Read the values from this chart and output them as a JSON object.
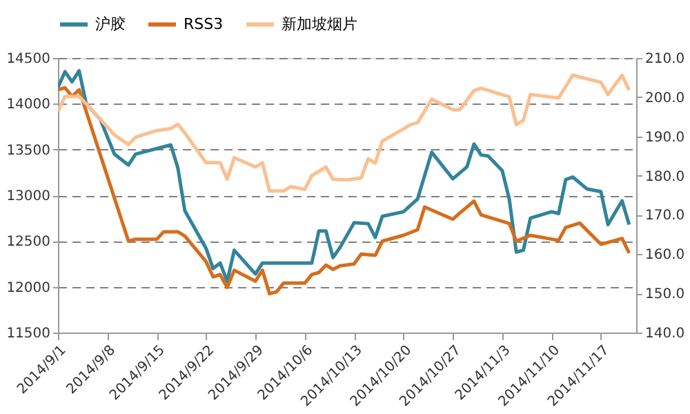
{
  "chart_data": {
    "type": "line",
    "xlim": [
      "2014-09-01",
      "2014-11-22"
    ],
    "xticks": [
      {
        "value": "2014-09-01",
        "label": "2014/9/1"
      },
      {
        "value": "2014-09-08",
        "label": "2014/9/8"
      },
      {
        "value": "2014-09-15",
        "label": "2014/9/15"
      },
      {
        "value": "2014-09-22",
        "label": "2014/9/22"
      },
      {
        "value": "2014-09-29",
        "label": "2014/9/29"
      },
      {
        "value": "2014-10-06",
        "label": "2014/10/6"
      },
      {
        "value": "2014-10-13",
        "label": "2014/10/13"
      },
      {
        "value": "2014-10-20",
        "label": "2014/10/20"
      },
      {
        "value": "2014-10-27",
        "label": "2014/10/27"
      },
      {
        "value": "2014-11-03",
        "label": "2014/11/3"
      },
      {
        "value": "2014-11-10",
        "label": "2014/11/10"
      },
      {
        "value": "2014-11-17",
        "label": "2014/11/17"
      }
    ],
    "ylim": [
      11500,
      14500
    ],
    "yticks": [
      11500,
      12000,
      12500,
      13000,
      13500,
      14000,
      14500
    ],
    "y2lim": [
      140,
      210
    ],
    "y2ticks": [
      {
        "value": 140,
        "label": "140.0"
      },
      {
        "value": 150,
        "label": "150.0"
      },
      {
        "value": 160,
        "label": "160.0"
      },
      {
        "value": 170,
        "label": "170.0"
      },
      {
        "value": 180,
        "label": "180.0"
      },
      {
        "value": 190,
        "label": "190.0"
      },
      {
        "value": 200,
        "label": "200.0"
      },
      {
        "value": 210,
        "label": "210.0"
      }
    ],
    "grid": "y",
    "legend": "top",
    "marker": "none",
    "line_style": "solid",
    "series": [
      {
        "name": "沪胶",
        "color": "#31849b",
        "x": [
          "2014-09-01",
          "2014-09-02",
          "2014-09-03",
          "2014-09-04",
          "2014-09-05",
          "2014-09-07",
          "2014-09-09",
          "2014-09-11",
          "2014-09-12",
          "2014-09-17",
          "2014-09-18",
          "2014-09-19",
          "2014-09-22",
          "2014-09-23",
          "2014-09-24",
          "2014-09-25",
          "2014-09-26",
          "2014-09-29",
          "2014-09-30",
          "2014-10-07",
          "2014-10-08",
          "2014-10-09",
          "2014-10-10",
          "2014-10-11",
          "2014-10-13",
          "2014-10-15",
          "2014-10-16",
          "2014-10-17",
          "2014-10-20",
          "2014-10-22",
          "2014-10-24",
          "2014-10-27",
          "2014-10-29",
          "2014-10-30",
          "2014-10-31",
          "2014-11-01",
          "2014-11-03",
          "2014-11-04",
          "2014-11-05",
          "2014-11-06",
          "2014-11-07",
          "2014-11-10",
          "2014-11-11",
          "2014-11-12",
          "2014-11-13",
          "2014-11-15",
          "2014-11-17",
          "2014-11-18",
          "2014-11-20",
          "2014-11-21"
        ],
        "values": [
          14180,
          14350,
          14240,
          14360,
          14000,
          13830,
          13450,
          13330,
          13450,
          13550,
          13300,
          12830,
          12420,
          12200,
          12260,
          12060,
          12400,
          12140,
          12260,
          12260,
          12610,
          12610,
          12320,
          12430,
          12700,
          12690,
          12540,
          12770,
          12820,
          12960,
          13470,
          13180,
          13310,
          13560,
          13440,
          13430,
          13270,
          12960,
          12380,
          12400,
          12750,
          12820,
          12800,
          13170,
          13200,
          13070,
          13040,
          12680,
          12940,
          12680
        ]
      },
      {
        "name": "RSS3",
        "color": "#d46e1e",
        "axis": "y2",
        "x": [
          "2014-09-01",
          "2014-09-02",
          "2014-09-03",
          "2014-09-04",
          "2014-09-11",
          "2014-09-12",
          "2014-09-15",
          "2014-09-16",
          "2014-09-18",
          "2014-09-19",
          "2014-09-22",
          "2014-09-23",
          "2014-09-24",
          "2014-09-25",
          "2014-09-26",
          "2014-09-29",
          "2014-09-30",
          "2014-10-01",
          "2014-10-02",
          "2014-10-03",
          "2014-10-06",
          "2014-10-07",
          "2014-10-08",
          "2014-10-09",
          "2014-10-10",
          "2014-10-11",
          "2014-10-13",
          "2014-10-14",
          "2014-10-16",
          "2014-10-17",
          "2014-10-20",
          "2014-10-22",
          "2014-10-23",
          "2014-10-27",
          "2014-10-28",
          "2014-10-30",
          "2014-10-31",
          "2014-11-04",
          "2014-11-05",
          "2014-11-07",
          "2014-11-11",
          "2014-11-12",
          "2014-11-14",
          "2014-11-17",
          "2014-11-20",
          "2014-11-21"
        ],
        "values": [
          201.9,
          202.4,
          200.2,
          201.9,
          163.3,
          163.8,
          163.8,
          165.7,
          165.7,
          164.6,
          158.1,
          154.2,
          154.8,
          151.5,
          155.9,
          153.1,
          155.9,
          149.9,
          150.4,
          152.6,
          152.6,
          154.8,
          155.3,
          157.2,
          156.1,
          157.0,
          157.5,
          160.0,
          159.7,
          163.3,
          164.8,
          166.2,
          172.0,
          168.9,
          170.5,
          173.5,
          170.0,
          167.8,
          163.3,
          164.8,
          163.5,
          166.8,
          167.9,
          162.5,
          164.0,
          160.3
        ]
      },
      {
        "name": "新加坡烟片",
        "color": "#fac090",
        "axis": "y2",
        "x": [
          "2014-09-01",
          "2014-09-02",
          "2014-09-04",
          "2014-09-06",
          "2014-09-09",
          "2014-09-11",
          "2014-09-12",
          "2014-09-15",
          "2014-09-17",
          "2014-09-18",
          "2014-09-19",
          "2014-09-22",
          "2014-09-24",
          "2014-09-25",
          "2014-09-26",
          "2014-09-29",
          "2014-09-30",
          "2014-10-01",
          "2014-10-03",
          "2014-10-04",
          "2014-10-06",
          "2014-10-07",
          "2014-10-09",
          "2014-10-10",
          "2014-10-12",
          "2014-10-14",
          "2014-10-15",
          "2014-10-16",
          "2014-10-17",
          "2014-10-20",
          "2014-10-21",
          "2014-10-22",
          "2014-10-24",
          "2014-10-27",
          "2014-10-28",
          "2014-10-30",
          "2014-10-31",
          "2014-11-04",
          "2014-11-05",
          "2014-11-06",
          "2014-11-07",
          "2014-11-11",
          "2014-11-13",
          "2014-11-17",
          "2014-11-18",
          "2014-11-20",
          "2014-11-21"
        ],
        "values": [
          196.4,
          200.2,
          200.2,
          196.4,
          190.4,
          187.9,
          189.8,
          191.5,
          192.0,
          193.1,
          190.9,
          183.3,
          183.3,
          179.1,
          184.6,
          182.2,
          183.3,
          176.1,
          176.1,
          177.2,
          176.5,
          180.0,
          182.2,
          179.1,
          178.9,
          179.4,
          184.3,
          183.2,
          188.8,
          191.9,
          193.0,
          193.5,
          199.5,
          196.8,
          196.8,
          201.7,
          202.3,
          200.1,
          193.0,
          194.1,
          200.7,
          199.8,
          205.6,
          203.8,
          200.7,
          205.6,
          201.8
        ]
      }
    ]
  }
}
